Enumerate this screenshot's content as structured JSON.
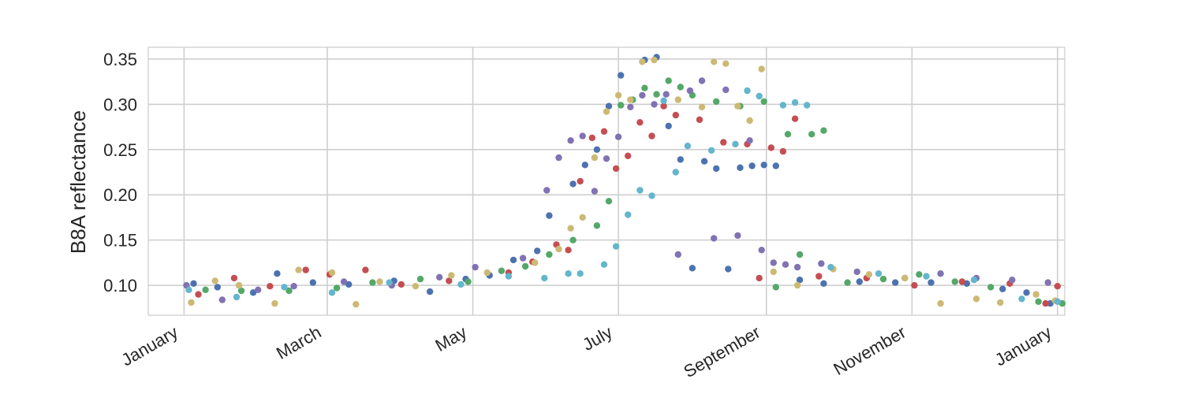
{
  "chart_data": {
    "type": "scatter",
    "title": "",
    "xlabel": "",
    "ylabel": "B8A reflectance",
    "x_axis": {
      "type": "date",
      "range": [
        "2019-12-17",
        "2021-01-04"
      ],
      "ticks": [
        {
          "date": "2020-01-01",
          "label": "January"
        },
        {
          "date": "2020-03-01",
          "label": "March"
        },
        {
          "date": "2020-05-01",
          "label": "May"
        },
        {
          "date": "2020-07-01",
          "label": "July"
        },
        {
          "date": "2020-09-01",
          "label": "September"
        },
        {
          "date": "2020-11-01",
          "label": "November"
        },
        {
          "date": "2021-01-01",
          "label": "January"
        }
      ]
    },
    "y_axis": {
      "range": [
        0.067,
        0.363
      ],
      "ticks": [
        0.1,
        0.15,
        0.2,
        0.25,
        0.3,
        0.35
      ],
      "tick_labels": [
        "0.10",
        "0.15",
        "0.20",
        "0.25",
        "0.30",
        "0.35"
      ]
    },
    "grid": true,
    "colors": [
      "#4c72b0",
      "#dd8452",
      "#55a868",
      "#c44e52",
      "#8172b3",
      "#ccb974",
      "#64b5cd"
    ],
    "series": [
      {
        "color": "#4c72b0",
        "points": [
          [
            "2020-01-05",
            0.102
          ],
          [
            "2020-01-15",
            0.098
          ],
          [
            "2020-01-30",
            0.092
          ],
          [
            "2020-02-09",
            0.113
          ],
          [
            "2020-02-24",
            0.103
          ],
          [
            "2020-03-10",
            0.101
          ],
          [
            "2020-03-29",
            0.105
          ],
          [
            "2020-04-13",
            0.093
          ],
          [
            "2020-04-28",
            0.107
          ],
          [
            "2020-05-08",
            0.111
          ],
          [
            "2020-05-18",
            0.128
          ],
          [
            "2020-05-28",
            0.138
          ],
          [
            "2020-06-02",
            0.177
          ],
          [
            "2020-06-12",
            0.212
          ],
          [
            "2020-06-17",
            0.233
          ],
          [
            "2020-06-22",
            0.25
          ],
          [
            "2020-06-27",
            0.298
          ],
          [
            "2020-07-02",
            0.332
          ],
          [
            "2020-07-12",
            0.349
          ],
          [
            "2020-07-17",
            0.352
          ],
          [
            "2020-07-22",
            0.276
          ],
          [
            "2020-07-27",
            0.239
          ],
          [
            "2020-08-01",
            0.119
          ],
          [
            "2020-08-06",
            0.237
          ],
          [
            "2020-08-11",
            0.229
          ],
          [
            "2020-08-16",
            0.118
          ],
          [
            "2020-08-21",
            0.23
          ],
          [
            "2020-08-26",
            0.232
          ],
          [
            "2020-08-31",
            0.233
          ],
          [
            "2020-09-05",
            0.232
          ],
          [
            "2020-09-15",
            0.106
          ],
          [
            "2020-09-25",
            0.102
          ],
          [
            "2020-10-10",
            0.104
          ],
          [
            "2020-10-25",
            0.103
          ],
          [
            "2020-11-09",
            0.103
          ],
          [
            "2020-11-24",
            0.102
          ],
          [
            "2020-12-09",
            0.096
          ],
          [
            "2020-12-19",
            0.092
          ],
          [
            "2020-12-29",
            0.08
          ]
        ]
      },
      {
        "color": "#55a868",
        "points": [
          [
            "2020-01-10",
            0.095
          ],
          [
            "2020-01-25",
            0.094
          ],
          [
            "2020-02-14",
            0.094
          ],
          [
            "2020-03-05",
            0.097
          ],
          [
            "2020-03-20",
            0.103
          ],
          [
            "2020-04-09",
            0.107
          ],
          [
            "2020-04-29",
            0.104
          ],
          [
            "2020-05-13",
            0.116
          ],
          [
            "2020-05-23",
            0.121
          ],
          [
            "2020-06-02",
            0.134
          ],
          [
            "2020-06-12",
            0.15
          ],
          [
            "2020-06-22",
            0.166
          ],
          [
            "2020-06-27",
            0.193
          ],
          [
            "2020-07-02",
            0.299
          ],
          [
            "2020-07-07",
            0.305
          ],
          [
            "2020-07-12",
            0.318
          ],
          [
            "2020-07-17",
            0.311
          ],
          [
            "2020-07-22",
            0.326
          ],
          [
            "2020-07-27",
            0.319
          ],
          [
            "2020-08-01",
            0.31
          ],
          [
            "2020-08-11",
            0.303
          ],
          [
            "2020-08-21",
            0.298
          ],
          [
            "2020-08-31",
            0.303
          ],
          [
            "2020-09-05",
            0.098
          ],
          [
            "2020-09-10",
            0.267
          ],
          [
            "2020-09-15",
            0.134
          ],
          [
            "2020-09-20",
            0.267
          ],
          [
            "2020-09-25",
            0.271
          ],
          [
            "2020-10-05",
            0.103
          ],
          [
            "2020-10-20",
            0.107
          ],
          [
            "2020-11-04",
            0.112
          ],
          [
            "2020-11-19",
            0.104
          ],
          [
            "2020-12-04",
            0.098
          ],
          [
            "2020-12-24",
            0.082
          ],
          [
            "2021-01-03",
            0.08
          ]
        ]
      },
      {
        "color": "#c44e52",
        "points": [
          [
            "2020-01-07",
            0.09
          ],
          [
            "2020-01-22",
            0.108
          ],
          [
            "2020-02-06",
            0.099
          ],
          [
            "2020-02-21",
            0.117
          ],
          [
            "2020-03-02",
            0.112
          ],
          [
            "2020-03-17",
            0.117
          ],
          [
            "2020-04-01",
            0.101
          ],
          [
            "2020-04-21",
            0.105
          ],
          [
            "2020-05-16",
            0.114
          ],
          [
            "2020-05-26",
            0.126
          ],
          [
            "2020-06-05",
            0.145
          ],
          [
            "2020-06-10",
            0.139
          ],
          [
            "2020-06-15",
            0.215
          ],
          [
            "2020-06-20",
            0.263
          ],
          [
            "2020-06-25",
            0.27
          ],
          [
            "2020-06-30",
            0.229
          ],
          [
            "2020-07-05",
            0.243
          ],
          [
            "2020-07-10",
            0.28
          ],
          [
            "2020-07-15",
            0.265
          ],
          [
            "2020-07-20",
            0.298
          ],
          [
            "2020-07-25",
            0.288
          ],
          [
            "2020-08-04",
            0.283
          ],
          [
            "2020-08-14",
            0.258
          ],
          [
            "2020-08-24",
            0.256
          ],
          [
            "2020-08-29",
            0.108
          ],
          [
            "2020-09-03",
            0.252
          ],
          [
            "2020-09-08",
            0.248
          ],
          [
            "2020-09-13",
            0.284
          ],
          [
            "2020-09-23",
            0.11
          ],
          [
            "2020-10-13",
            0.108
          ],
          [
            "2020-11-02",
            0.1
          ],
          [
            "2020-11-22",
            0.104
          ],
          [
            "2020-12-12",
            0.102
          ],
          [
            "2020-12-27",
            0.08
          ],
          [
            "2021-01-01",
            0.099
          ]
        ]
      },
      {
        "color": "#8172b3",
        "points": [
          [
            "2020-01-02",
            0.1
          ],
          [
            "2020-01-17",
            0.084
          ],
          [
            "2020-02-01",
            0.095
          ],
          [
            "2020-02-16",
            0.099
          ],
          [
            "2020-03-08",
            0.104
          ],
          [
            "2020-03-28",
            0.1
          ],
          [
            "2020-04-17",
            0.109
          ],
          [
            "2020-05-02",
            0.12
          ],
          [
            "2020-05-22",
            0.13
          ],
          [
            "2020-06-01",
            0.205
          ],
          [
            "2020-06-06",
            0.241
          ],
          [
            "2020-06-11",
            0.26
          ],
          [
            "2020-06-16",
            0.265
          ],
          [
            "2020-06-21",
            0.204
          ],
          [
            "2020-06-26",
            0.24
          ],
          [
            "2020-07-01",
            0.264
          ],
          [
            "2020-07-06",
            0.297
          ],
          [
            "2020-07-11",
            0.31
          ],
          [
            "2020-07-16",
            0.3
          ],
          [
            "2020-07-21",
            0.311
          ],
          [
            "2020-07-26",
            0.134
          ],
          [
            "2020-07-31",
            0.315
          ],
          [
            "2020-08-05",
            0.326
          ],
          [
            "2020-08-10",
            0.152
          ],
          [
            "2020-08-15",
            0.316
          ],
          [
            "2020-08-20",
            0.155
          ],
          [
            "2020-08-25",
            0.26
          ],
          [
            "2020-08-30",
            0.139
          ],
          [
            "2020-09-04",
            0.125
          ],
          [
            "2020-09-09",
            0.123
          ],
          [
            "2020-09-14",
            0.12
          ],
          [
            "2020-09-24",
            0.124
          ],
          [
            "2020-10-09",
            0.115
          ],
          [
            "2020-10-29",
            0.108
          ],
          [
            "2020-11-13",
            0.113
          ],
          [
            "2020-11-28",
            0.108
          ],
          [
            "2020-12-13",
            0.106
          ],
          [
            "2020-12-28",
            0.103
          ]
        ]
      },
      {
        "color": "#ccb974",
        "points": [
          [
            "2020-01-04",
            0.081
          ],
          [
            "2020-01-14",
            0.105
          ],
          [
            "2020-01-24",
            0.1
          ],
          [
            "2020-02-08",
            0.08
          ],
          [
            "2020-02-18",
            0.117
          ],
          [
            "2020-03-03",
            0.114
          ],
          [
            "2020-03-13",
            0.079
          ],
          [
            "2020-03-23",
            0.104
          ],
          [
            "2020-04-07",
            0.099
          ],
          [
            "2020-04-22",
            0.111
          ],
          [
            "2020-05-07",
            0.114
          ],
          [
            "2020-05-27",
            0.125
          ],
          [
            "2020-06-06",
            0.14
          ],
          [
            "2020-06-11",
            0.163
          ],
          [
            "2020-06-16",
            0.175
          ],
          [
            "2020-06-21",
            0.241
          ],
          [
            "2020-06-26",
            0.292
          ],
          [
            "2020-07-01",
            0.31
          ],
          [
            "2020-07-06",
            0.305
          ],
          [
            "2020-07-11",
            0.347
          ],
          [
            "2020-07-16",
            0.349
          ],
          [
            "2020-07-26",
            0.305
          ],
          [
            "2020-08-05",
            0.297
          ],
          [
            "2020-08-10",
            0.347
          ],
          [
            "2020-08-15",
            0.345
          ],
          [
            "2020-08-20",
            0.298
          ],
          [
            "2020-08-25",
            0.282
          ],
          [
            "2020-08-30",
            0.339
          ],
          [
            "2020-09-04",
            0.115
          ],
          [
            "2020-09-14",
            0.1
          ],
          [
            "2020-09-29",
            0.118
          ],
          [
            "2020-10-14",
            0.112
          ],
          [
            "2020-10-29",
            0.108
          ],
          [
            "2020-11-13",
            0.08
          ],
          [
            "2020-11-28",
            0.085
          ],
          [
            "2020-12-08",
            0.081
          ],
          [
            "2020-12-23",
            0.09
          ],
          [
            "2020-12-31",
            0.083
          ]
        ]
      },
      {
        "color": "#64b5cd",
        "points": [
          [
            "2020-01-03",
            0.095
          ],
          [
            "2020-01-23",
            0.087
          ],
          [
            "2020-02-12",
            0.098
          ],
          [
            "2020-03-03",
            0.092
          ],
          [
            "2020-03-27",
            0.103
          ],
          [
            "2020-04-26",
            0.101
          ],
          [
            "2020-05-16",
            0.11
          ],
          [
            "2020-05-31",
            0.108
          ],
          [
            "2020-06-10",
            0.113
          ],
          [
            "2020-06-15",
            0.113
          ],
          [
            "2020-06-25",
            0.123
          ],
          [
            "2020-06-30",
            0.143
          ],
          [
            "2020-07-05",
            0.178
          ],
          [
            "2020-07-10",
            0.205
          ],
          [
            "2020-07-15",
            0.199
          ],
          [
            "2020-07-20",
            0.304
          ],
          [
            "2020-07-25",
            0.225
          ],
          [
            "2020-07-30",
            0.254
          ],
          [
            "2020-08-09",
            0.249
          ],
          [
            "2020-08-19",
            0.256
          ],
          [
            "2020-08-24",
            0.315
          ],
          [
            "2020-08-29",
            0.309
          ],
          [
            "2020-09-08",
            0.299
          ],
          [
            "2020-09-13",
            0.302
          ],
          [
            "2020-09-18",
            0.299
          ],
          [
            "2020-09-28",
            0.12
          ],
          [
            "2020-10-18",
            0.113
          ],
          [
            "2020-11-07",
            0.11
          ],
          [
            "2020-11-27",
            0.106
          ],
          [
            "2020-12-17",
            0.085
          ],
          [
            "2021-01-01",
            0.082
          ]
        ]
      }
    ]
  }
}
